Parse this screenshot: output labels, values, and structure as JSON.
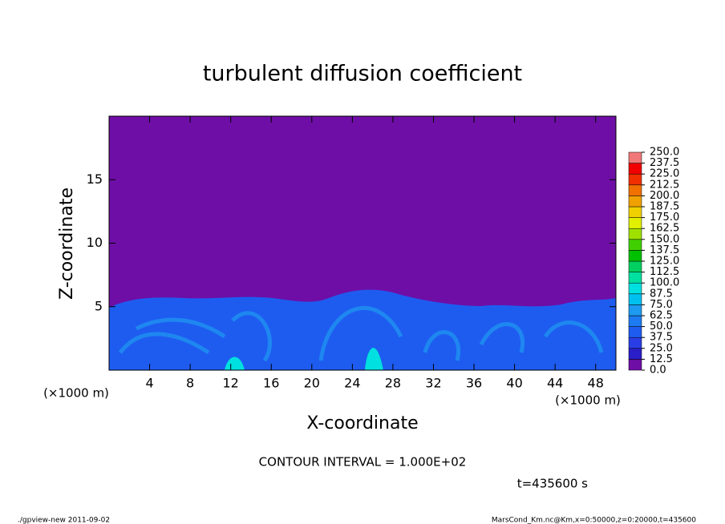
{
  "chart_data": {
    "type": "contour",
    "title": "turbulent diffusion coefficient",
    "xlabel": "X-coordinate",
    "ylabel": "Z-coordinate",
    "xunit": "(×1000 m)",
    "yunit": "(×1000 m)",
    "xlim": [
      0,
      50
    ],
    "xticks": [
      4,
      8,
      12,
      16,
      20,
      24,
      28,
      32,
      36,
      40,
      44,
      48
    ],
    "ylim": [
      0,
      20
    ],
    "yticks": [
      5,
      10,
      15
    ],
    "colorbar": {
      "levels": [
        {
          "value": 0,
          "label": "0.0"
        },
        {
          "value": 12.5,
          "label": "12.5"
        },
        {
          "value": 25,
          "label": "25.0"
        },
        {
          "value": 37.5,
          "label": "37.5"
        },
        {
          "value": 50,
          "label": "50.0"
        },
        {
          "value": 62.5,
          "label": "62.5"
        },
        {
          "value": 75,
          "label": "75.0"
        },
        {
          "value": 87.5,
          "label": "87.5"
        },
        {
          "value": 100,
          "label": "100.0"
        },
        {
          "value": 112.5,
          "label": "112.5"
        },
        {
          "value": 125,
          "label": "125.0"
        },
        {
          "value": 137.5,
          "label": "137.5"
        },
        {
          "value": 150,
          "label": "150.0"
        },
        {
          "value": 162.5,
          "label": "162.5"
        },
        {
          "value": 175,
          "label": "175.0"
        },
        {
          "value": 187.5,
          "label": "187.5"
        },
        {
          "value": 200,
          "label": "200.0"
        },
        {
          "value": 212.5,
          "label": "212.5"
        },
        {
          "value": 225,
          "label": "225.0"
        },
        {
          "value": 237.5,
          "label": "237.5"
        },
        {
          "value": 250,
          "label": "250.0"
        }
      ],
      "colors": [
        "#6e0ea6",
        "#2a1ec8",
        "#2a3ee6",
        "#1e5cf0",
        "#1e7af0",
        "#1e9af0",
        "#00c0f0",
        "#00e0e0",
        "#00e0a0",
        "#00d060",
        "#00c000",
        "#40d000",
        "#a0e000",
        "#e0f000",
        "#f0d000",
        "#f0a000",
        "#f07000",
        "#f03000",
        "#f00000",
        "#f07878"
      ]
    },
    "contour_interval": "CONTOUR INTERVAL = 1.000E+02",
    "time_label": "t=435600 s",
    "footer_left": "./gpview-new  2011-09-02",
    "footer_right": "MarsCond_Km.nc@Km,x=0:50000,z=0:20000,t=435600"
  }
}
